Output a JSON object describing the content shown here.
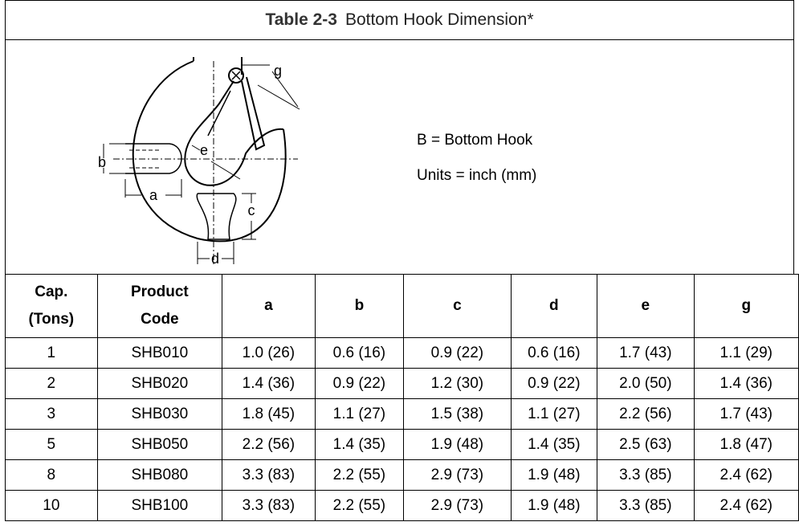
{
  "title": {
    "label": "Table 2-3",
    "text": "Bottom Hook Dimension*"
  },
  "diagram": {
    "labels": [
      "a",
      "b",
      "c",
      "d",
      "e",
      "g"
    ],
    "notes": [
      "B = Bottom Hook",
      "Units = inch (mm)"
    ]
  },
  "table": {
    "header": [
      [
        "Cap.",
        "(Tons)"
      ],
      [
        "Product",
        "Code"
      ],
      [
        "a"
      ],
      [
        "b"
      ],
      [
        "c"
      ],
      [
        "d"
      ],
      [
        "e"
      ],
      [
        "g"
      ]
    ],
    "rows": [
      [
        "1",
        "SHB010",
        "1.0 (26)",
        "0.6 (16)",
        "0.9 (22)",
        "0.6 (16)",
        "1.7 (43)",
        "1.1 (29)"
      ],
      [
        "2",
        "SHB020",
        "1.4 (36)",
        "0.9 (22)",
        "1.2 (30)",
        "0.9 (22)",
        "2.0 (50)",
        "1.4 (36)"
      ],
      [
        "3",
        "SHB030",
        "1.8 (45)",
        "1.1 (27)",
        "1.5 (38)",
        "1.1 (27)",
        "2.2 (56)",
        "1.7 (43)"
      ],
      [
        "5",
        "SHB050",
        "2.2 (56)",
        "1.4 (35)",
        "1.9 (48)",
        "1.4 (35)",
        "2.5 (63)",
        "1.8 (47)"
      ],
      [
        "8",
        "SHB080",
        "3.3 (83)",
        "2.2 (55)",
        "2.9 (73)",
        "1.9 (48)",
        "3.3 (85)",
        "2.4 (62)"
      ],
      [
        "10",
        "SHB100",
        "3.3 (83)",
        "2.2 (55)",
        "2.9 (73)",
        "1.9 (48)",
        "3.3 (85)",
        "2.4 (62)"
      ]
    ]
  }
}
